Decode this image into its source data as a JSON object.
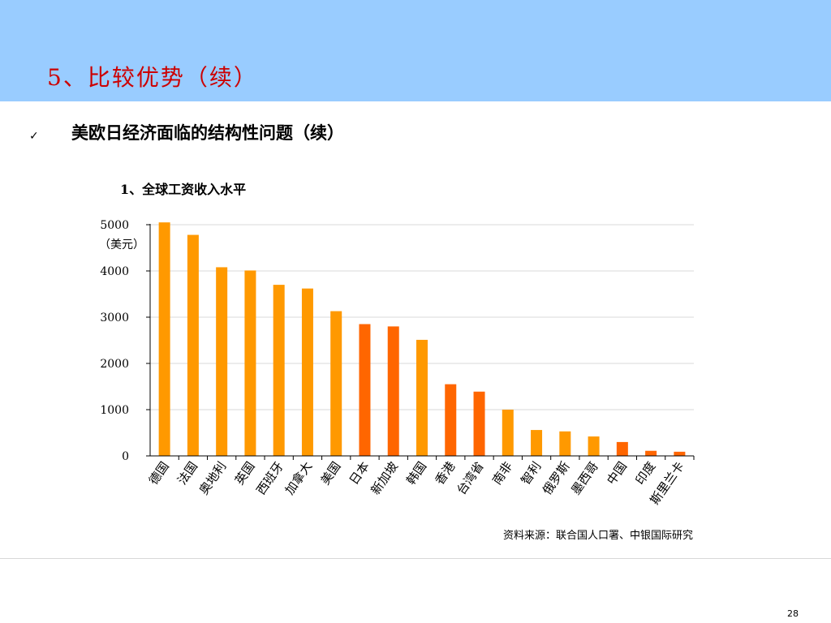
{
  "slide": {
    "title": "5、比较优势（续）",
    "bullet": "美欧日经济面临的结构性问题（续）",
    "source": "资料来源：联合国人口署、中银国际研究",
    "page_number": "28"
  },
  "colors": {
    "header": "#99CCFF",
    "title": "#CC0000",
    "bar_light": "#FF9900",
    "bar_dark": "#FF6600"
  },
  "chart_data": {
    "type": "bar",
    "title": "1、全球工资收入水平",
    "ylabel": "（美元）",
    "ylim": [
      0,
      5000
    ],
    "yticks": [
      0,
      1000,
      2000,
      3000,
      4000,
      5000
    ],
    "grid": true,
    "categories": [
      "德国",
      "法国",
      "奥地利",
      "英国",
      "西班牙",
      "加拿大",
      "美国",
      "日本",
      "新加坡",
      "韩国",
      "香港",
      "台湾省",
      "南非",
      "智利",
      "俄罗斯",
      "墨西哥",
      "中国",
      "印度",
      "斯里兰卡"
    ],
    "values": [
      5050,
      4780,
      4080,
      4010,
      3700,
      3620,
      3130,
      2850,
      2800,
      2510,
      1550,
      1390,
      1000,
      560,
      530,
      420,
      300,
      110,
      90
    ],
    "bar_colors": [
      "#FF9900",
      "#FF9900",
      "#FF9900",
      "#FF9900",
      "#FF9900",
      "#FF9900",
      "#FF9900",
      "#FF6600",
      "#FF6600",
      "#FF9900",
      "#FF6600",
      "#FF6600",
      "#FF9900",
      "#FF9900",
      "#FF9900",
      "#FF9900",
      "#FF6600",
      "#FF6600",
      "#FF6600"
    ]
  }
}
